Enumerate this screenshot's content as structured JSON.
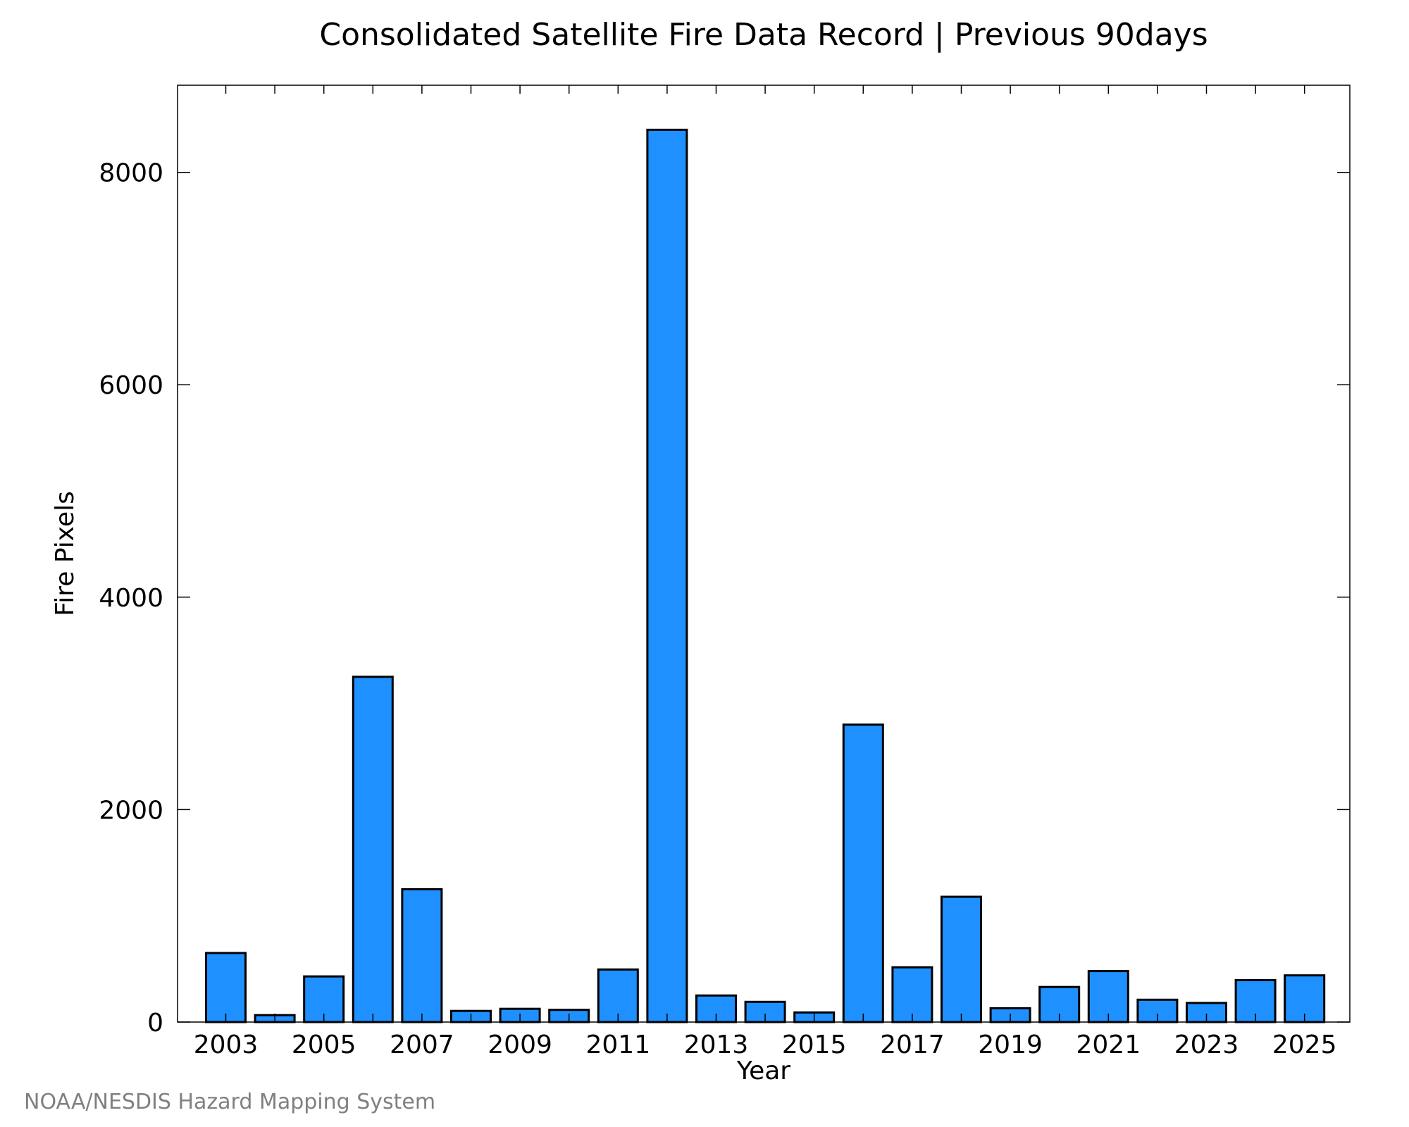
{
  "chart_data": {
    "type": "bar",
    "title": "Consolidated Satellite Fire Data Record | Previous 90days",
    "xlabel": "Year",
    "ylabel": "Fire Pixels",
    "categories": [
      "2003",
      "2004",
      "2005",
      "2006",
      "2007",
      "2008",
      "2009",
      "2010",
      "2011",
      "2012",
      "2013",
      "2014",
      "2015",
      "2016",
      "2017",
      "2018",
      "2019",
      "2020",
      "2021",
      "2022",
      "2023",
      "2024",
      "2025"
    ],
    "values": [
      650,
      65,
      430,
      3250,
      1250,
      105,
      125,
      115,
      495,
      8400,
      250,
      190,
      90,
      2800,
      515,
      1180,
      130,
      330,
      480,
      210,
      180,
      395,
      440
    ],
    "x_tick_labels": [
      "2003",
      "2005",
      "2007",
      "2009",
      "2011",
      "2013",
      "2015",
      "2017",
      "2019",
      "2021",
      "2023",
      "2025"
    ],
    "y_ticks": [
      "0",
      "2000",
      "4000",
      "6000",
      "8000"
    ],
    "ylim": [
      0,
      8820
    ],
    "grid": false,
    "legend": "none",
    "bar_color": "#1e90ff",
    "bar_edge_color": "#000000"
  },
  "credit": "NOAA/NESDIS Hazard Mapping System"
}
